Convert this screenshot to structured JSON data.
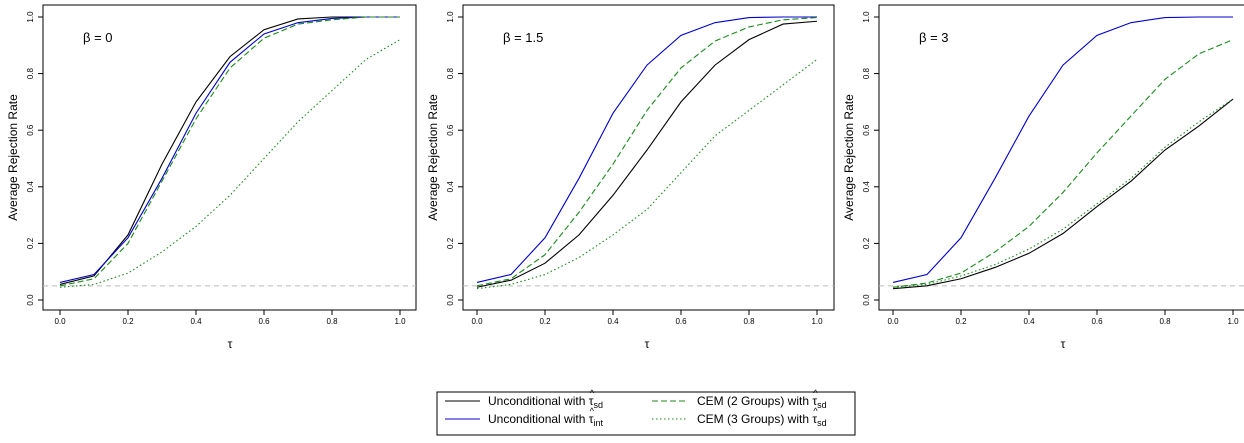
{
  "chart_data": [
    {
      "type": "line",
      "annotation": "β = 0",
      "xlabel": "τ",
      "ylabel": "Average Rejection Rate",
      "xlim": [
        0,
        1
      ],
      "ylim": [
        0,
        1
      ],
      "x_ticks": [
        "0.0",
        "0.2",
        "0.4",
        "0.6",
        "0.8",
        "1.0"
      ],
      "y_ticks": [
        "0.0",
        "0.2",
        "0.4",
        "0.6",
        "0.8",
        "1.0"
      ],
      "reference_line": 0.05,
      "x": [
        0.0,
        0.1,
        0.2,
        0.3,
        0.4,
        0.5,
        0.6,
        0.7,
        0.8,
        0.9,
        1.0
      ],
      "series": [
        {
          "values": [
            0.055,
            0.085,
            0.23,
            0.48,
            0.7,
            0.86,
            0.955,
            0.993,
            1.0,
            1.0,
            1.0
          ]
        },
        {
          "values": [
            0.062,
            0.09,
            0.22,
            0.43,
            0.66,
            0.84,
            0.94,
            0.98,
            0.995,
            1.0,
            1.0
          ]
        },
        {
          "values": [
            0.05,
            0.075,
            0.2,
            0.42,
            0.64,
            0.82,
            0.925,
            0.975,
            0.99,
            1.0,
            1.0
          ]
        },
        {
          "values": [
            0.045,
            0.055,
            0.095,
            0.17,
            0.26,
            0.37,
            0.5,
            0.63,
            0.74,
            0.85,
            0.92
          ]
        }
      ]
    },
    {
      "type": "line",
      "annotation": "β = 1.5",
      "xlabel": "τ",
      "ylabel": "Average Rejection Rate",
      "xlim": [
        0,
        1
      ],
      "ylim": [
        0,
        1
      ],
      "x_ticks": [
        "0.0",
        "0.2",
        "0.4",
        "0.6",
        "0.8",
        "1.0"
      ],
      "y_ticks": [
        "0.0",
        "0.2",
        "0.4",
        "0.6",
        "0.8",
        "1.0"
      ],
      "reference_line": 0.05,
      "x": [
        0.0,
        0.1,
        0.2,
        0.3,
        0.4,
        0.5,
        0.6,
        0.7,
        0.8,
        0.9,
        1.0
      ],
      "series": [
        {
          "values": [
            0.045,
            0.07,
            0.13,
            0.23,
            0.37,
            0.53,
            0.7,
            0.83,
            0.92,
            0.975,
            0.985
          ]
        },
        {
          "values": [
            0.062,
            0.09,
            0.22,
            0.43,
            0.66,
            0.83,
            0.935,
            0.98,
            0.998,
            1.0,
            1.0
          ]
        },
        {
          "values": [
            0.05,
            0.075,
            0.16,
            0.31,
            0.48,
            0.67,
            0.82,
            0.915,
            0.965,
            0.99,
            0.998
          ]
        },
        {
          "values": [
            0.04,
            0.055,
            0.09,
            0.15,
            0.23,
            0.32,
            0.45,
            0.58,
            0.67,
            0.76,
            0.85
          ]
        }
      ]
    },
    {
      "type": "line",
      "annotation": "β = 3",
      "xlabel": "τ",
      "ylabel": "Average Rejection Rate",
      "xlim": [
        0,
        1
      ],
      "ylim": [
        0,
        1
      ],
      "x_ticks": [
        "0.0",
        "0.2",
        "0.4",
        "0.6",
        "0.8",
        "1.0"
      ],
      "y_ticks": [
        "0.0",
        "0.2",
        "0.4",
        "0.6",
        "0.8",
        "1.0"
      ],
      "reference_line": 0.05,
      "x": [
        0.0,
        0.1,
        0.2,
        0.3,
        0.4,
        0.5,
        0.6,
        0.7,
        0.8,
        0.9,
        1.0
      ],
      "series": [
        {
          "values": [
            0.04,
            0.05,
            0.075,
            0.115,
            0.165,
            0.235,
            0.33,
            0.42,
            0.53,
            0.615,
            0.71
          ]
        },
        {
          "values": [
            0.062,
            0.09,
            0.22,
            0.43,
            0.65,
            0.83,
            0.935,
            0.98,
            0.998,
            1.0,
            1.0
          ]
        },
        {
          "values": [
            0.045,
            0.06,
            0.095,
            0.17,
            0.26,
            0.38,
            0.52,
            0.65,
            0.78,
            0.87,
            0.92
          ]
        },
        {
          "values": [
            0.045,
            0.055,
            0.085,
            0.125,
            0.18,
            0.25,
            0.34,
            0.43,
            0.54,
            0.63,
            0.71
          ]
        }
      ]
    }
  ],
  "series_styles": [
    {
      "color": "#000000",
      "dash": "none"
    },
    {
      "color": "#0000cc",
      "dash": "none"
    },
    {
      "color": "#1a8a1a",
      "dash": "6,3"
    },
    {
      "color": "#1a8a1a",
      "dash": "1.5,2.5"
    }
  ],
  "reference_line_color": "#bbbbbb",
  "legend": {
    "placement": "bottom-center",
    "entries": [
      {
        "prefix": "Unconditional with ",
        "symbol": "τ",
        "hat": "^",
        "sub": "sd"
      },
      {
        "prefix": "CEM (2 Groups) with ",
        "symbol": "τ",
        "hat": "^",
        "sub": "sd"
      },
      {
        "prefix": "Unconditional with ",
        "symbol": "τ",
        "hat": "^",
        "sub": "int"
      },
      {
        "prefix": "CEM (3 Groups) with ",
        "symbol": "τ",
        "hat": "^",
        "sub": "sd"
      }
    ]
  }
}
